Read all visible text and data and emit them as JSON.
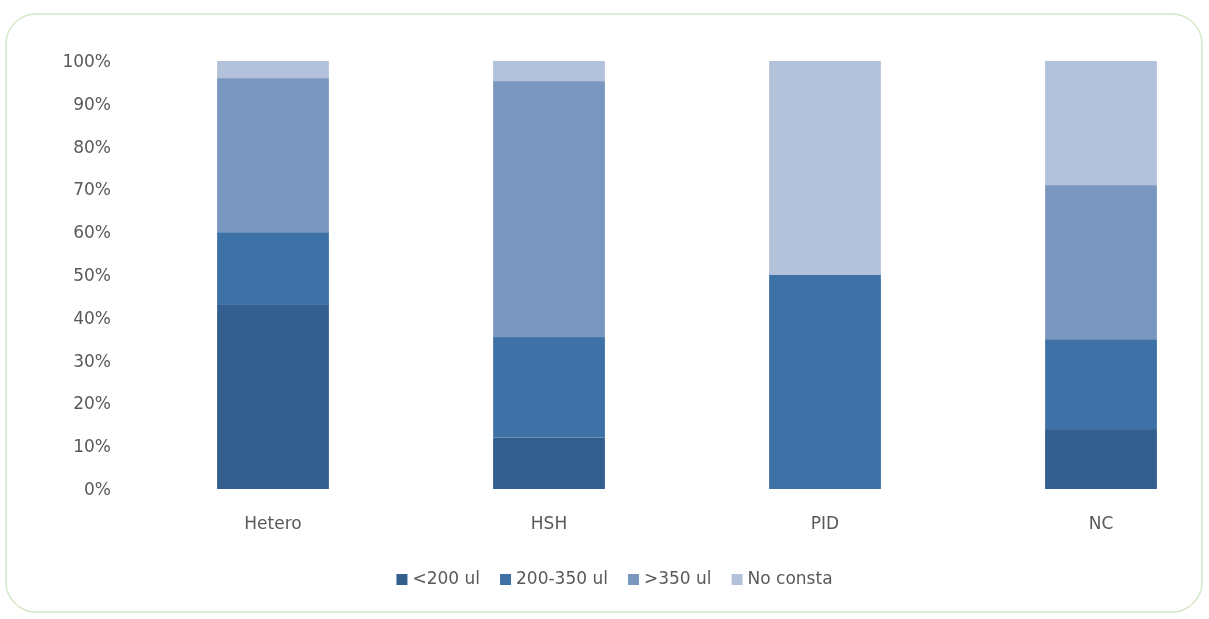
{
  "chart_data": {
    "type": "bar",
    "stacked": true,
    "categories": [
      "Hetero",
      "HSH",
      "PID",
      "NC"
    ],
    "series": [
      {
        "name": "<200 ul",
        "color": "#335f8f",
        "values": [
          43,
          12,
          0,
          14
        ]
      },
      {
        "name": "200-350  ul",
        "color": "#3e72a6",
        "values": [
          17,
          23.5,
          50,
          21
        ]
      },
      {
        "name": ">350 ul",
        "color": "#7a97c0",
        "values": [
          36,
          59.8,
          0,
          36
        ]
      },
      {
        "name": "No consta",
        "color": "#b4c1da",
        "values": [
          4,
          4.7,
          50,
          29
        ]
      }
    ],
    "ylim": [
      0,
      100
    ],
    "yticks": [
      {
        "value": 0,
        "label": "0%"
      },
      {
        "value": 10,
        "label": "10%"
      },
      {
        "value": 20,
        "label": "20%"
      },
      {
        "value": 30,
        "label": "30%"
      },
      {
        "value": 40,
        "label": "40%"
      },
      {
        "value": 50,
        "label": "50%"
      },
      {
        "value": 60,
        "label": "60%"
      },
      {
        "value": 70,
        "label": "70%"
      },
      {
        "value": 80,
        "label": "80%"
      },
      {
        "value": 90,
        "label": "90%"
      },
      {
        "value": 100,
        "label": "100%"
      }
    ],
    "legend": "bottom"
  }
}
